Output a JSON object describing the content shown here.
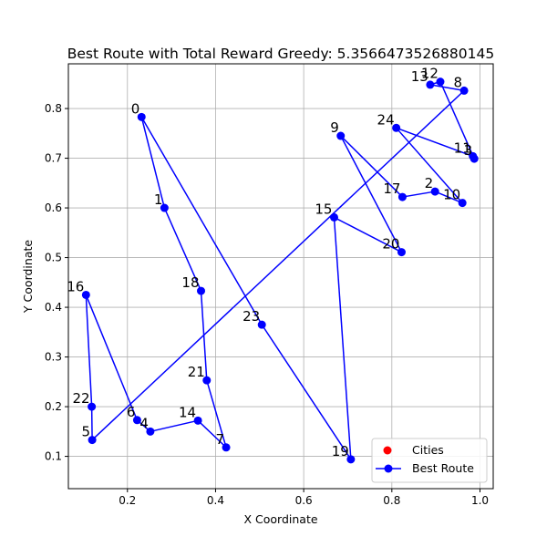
{
  "chart_data": {
    "type": "line",
    "title": "Best Route with Total Reward Greedy: 5.3566473526880145",
    "xlabel": "X Coordinate",
    "ylabel": "Y Coordinate",
    "xlim": [
      0.066,
      1.03
    ],
    "ylim": [
      0.035,
      0.89
    ],
    "xticks": [
      0.2,
      0.4,
      0.6,
      0.8,
      1.0
    ],
    "xtick_labels": [
      "0.2",
      "0.4",
      "0.6",
      "0.8",
      "1.0"
    ],
    "yticks": [
      0.1,
      0.2,
      0.3,
      0.4,
      0.5,
      0.6,
      0.7,
      0.8
    ],
    "ytick_labels": [
      "0.1",
      "0.2",
      "0.3",
      "0.4",
      "0.5",
      "0.6",
      "0.7",
      "0.8"
    ],
    "grid": true,
    "legend_position": "lower-right",
    "colors": {
      "route": "#0000ff",
      "cities": "#ff0000",
      "grid": "#b0b0b0"
    },
    "legend": [
      {
        "label": "Cities",
        "marker": "dot",
        "color": "#ff0000"
      },
      {
        "label": "Best Route",
        "marker": "line-dot",
        "color": "#0000ff"
      }
    ],
    "cities": [
      {
        "id": "0",
        "x": 0.232,
        "y": 0.783
      },
      {
        "id": "1",
        "x": 0.284,
        "y": 0.6
      },
      {
        "id": "2",
        "x": 0.898,
        "y": 0.633
      },
      {
        "id": "3",
        "x": 0.987,
        "y": 0.699
      },
      {
        "id": "4",
        "x": 0.252,
        "y": 0.15
      },
      {
        "id": "5",
        "x": 0.12,
        "y": 0.133
      },
      {
        "id": "6",
        "x": 0.222,
        "y": 0.173
      },
      {
        "id": "7",
        "x": 0.424,
        "y": 0.118
      },
      {
        "id": "8",
        "x": 0.964,
        "y": 0.836
      },
      {
        "id": "9",
        "x": 0.684,
        "y": 0.745
      },
      {
        "id": "10",
        "x": 0.96,
        "y": 0.61
      },
      {
        "id": "11",
        "x": 0.984,
        "y": 0.704
      },
      {
        "id": "12",
        "x": 0.91,
        "y": 0.854
      },
      {
        "id": "13",
        "x": 0.887,
        "y": 0.848
      },
      {
        "id": "14",
        "x": 0.36,
        "y": 0.172
      },
      {
        "id": "15",
        "x": 0.669,
        "y": 0.581
      },
      {
        "id": "16",
        "x": 0.106,
        "y": 0.425
      },
      {
        "id": "17",
        "x": 0.824,
        "y": 0.622
      },
      {
        "id": "18",
        "x": 0.367,
        "y": 0.433
      },
      {
        "id": "19",
        "x": 0.707,
        "y": 0.094
      },
      {
        "id": "20",
        "x": 0.822,
        "y": 0.511
      },
      {
        "id": "21",
        "x": 0.38,
        "y": 0.253
      },
      {
        "id": "22",
        "x": 0.119,
        "y": 0.2
      },
      {
        "id": "23",
        "x": 0.505,
        "y": 0.365
      },
      {
        "id": "24",
        "x": 0.81,
        "y": 0.761
      }
    ],
    "route": [
      "0",
      "1",
      "18",
      "21",
      "7",
      "14",
      "4",
      "6",
      "16",
      "22",
      "5",
      "8",
      "13",
      "12",
      "3",
      "11",
      "24",
      "10",
      "2",
      "17",
      "9",
      "20",
      "15",
      "19",
      "23",
      "0"
    ]
  }
}
